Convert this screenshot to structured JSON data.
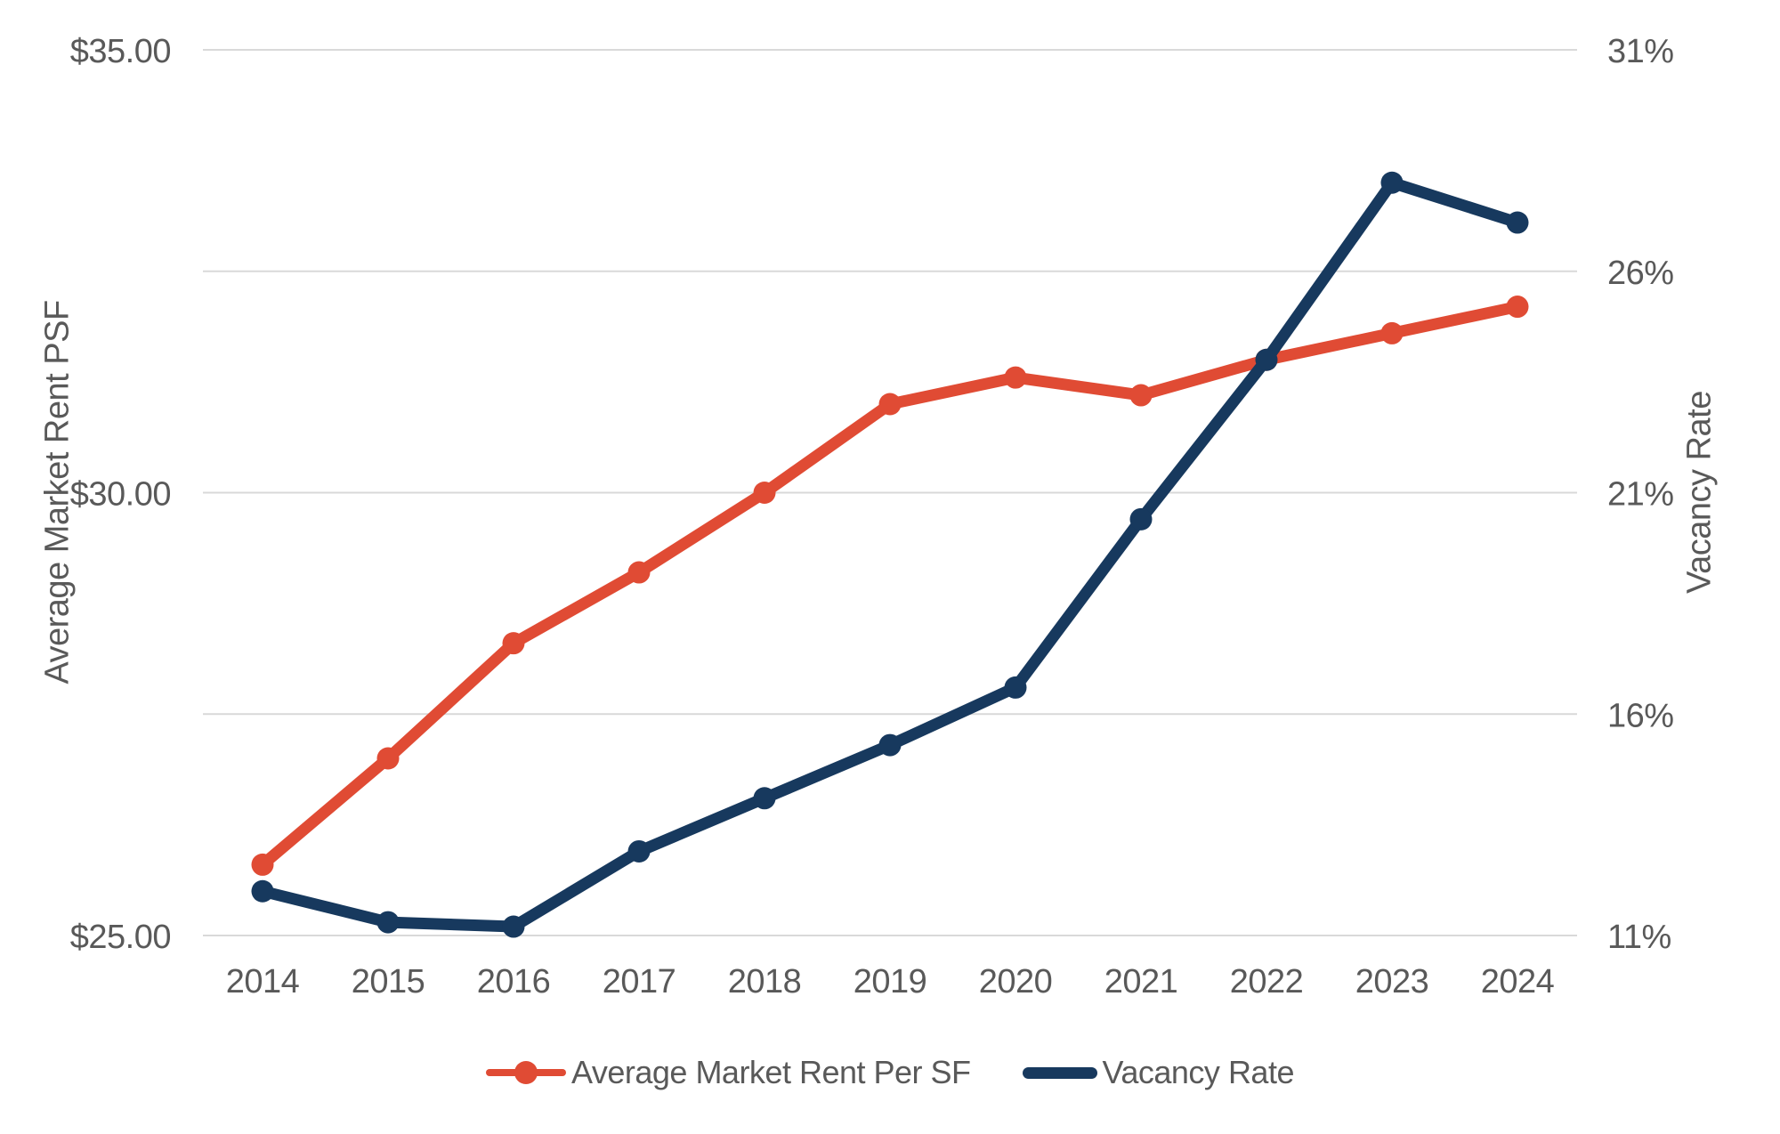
{
  "chart_data": {
    "type": "line",
    "title": "",
    "categories": [
      "2014",
      "2015",
      "2016",
      "2017",
      "2018",
      "2019",
      "2020",
      "2021",
      "2022",
      "2023",
      "2024"
    ],
    "series": [
      {
        "name": "Average Market Rent Per SF",
        "axis": "left",
        "color": "#E04B34",
        "marker": "circle",
        "values": [
          25.8,
          27.0,
          28.3,
          29.1,
          30.0,
          31.0,
          31.3,
          31.1,
          31.5,
          31.8,
          32.1
        ]
      },
      {
        "name": "Vacancy Rate",
        "axis": "right",
        "color": "#17395E",
        "marker": "circle",
        "values": [
          12.0,
          11.3,
          11.2,
          12.9,
          14.1,
          15.3,
          16.6,
          20.4,
          24.0,
          28.0,
          27.1
        ]
      }
    ],
    "left_axis": {
      "title": "Average Market Rent PSF",
      "min": 25,
      "max": 35,
      "ticks": [
        {
          "value": 35,
          "label": "$35.00"
        },
        {
          "value": 30,
          "label": "$30.00"
        },
        {
          "value": 25,
          "label": "$25.00"
        }
      ]
    },
    "right_axis": {
      "title": "Vacancy Rate",
      "min": 11,
      "max": 31,
      "ticks": [
        {
          "value": 31,
          "label": "31%"
        },
        {
          "value": 26,
          "label": "26%"
        },
        {
          "value": 21,
          "label": "21%"
        },
        {
          "value": 16,
          "label": "16%"
        },
        {
          "value": 11,
          "label": "11%"
        }
      ]
    },
    "grid": {
      "show": true,
      "color": "#D9D9D9"
    },
    "legend": {
      "position": "bottom",
      "items": [
        {
          "label": "Average Market Rent Per SF",
          "color": "#E04B34",
          "marker": "line-with-circle"
        },
        {
          "label": "Vacancy Rate",
          "color": "#17395E",
          "marker": "line"
        }
      ]
    },
    "text_color": "#595959"
  }
}
